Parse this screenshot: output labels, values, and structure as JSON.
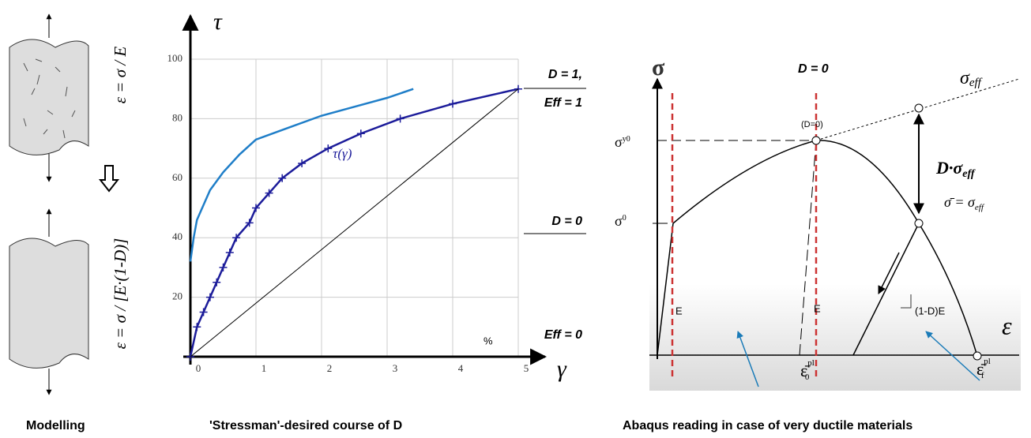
{
  "modelling": {
    "eq1": "ε = σ / E",
    "eq2": "ε = σ / [E·(1-D)]",
    "caption": "Modelling"
  },
  "chart_data": {
    "type": "line",
    "title": "'Stressman'-desired course of D",
    "y_label": "τ",
    "x_label": "γ",
    "unit_note": "%",
    "xlim": [
      0,
      5
    ],
    "ylim": [
      0,
      100
    ],
    "xticks": [
      0,
      1,
      2,
      3,
      4,
      5
    ],
    "yticks": [
      20,
      40,
      60,
      80,
      100
    ],
    "grid": true,
    "series": [
      {
        "color": "#1f7ec8",
        "marker": false,
        "x": [
          0,
          0.05,
          0.1,
          0.2,
          0.3,
          0.5,
          0.75,
          1,
          1.5,
          2,
          2.5,
          3,
          3.4
        ],
        "values": [
          32,
          40,
          46,
          51,
          56,
          62,
          68,
          73,
          77,
          81,
          84,
          87,
          90
        ]
      },
      {
        "name": "τ(γ)",
        "color": "#1c1c9a",
        "marker": true,
        "x": [
          0,
          0.1,
          0.2,
          0.3,
          0.4,
          0.5,
          0.6,
          0.7,
          0.9,
          1,
          1.2,
          1.4,
          1.7,
          2.1,
          2.6,
          3.2,
          4,
          5
        ],
        "values": [
          0,
          10,
          15,
          20,
          25,
          30,
          35,
          40,
          45,
          50,
          55,
          60,
          65,
          70,
          75,
          80,
          85,
          90
        ]
      },
      {
        "color": "#000000",
        "marker": false,
        "x": [
          0,
          5
        ],
        "values": [
          0,
          90
        ]
      }
    ],
    "annotations": [
      "D = 1,",
      "Eff = 1",
      "D = 0",
      "Eff = 0"
    ]
  },
  "abaqus": {
    "sigma": "σ",
    "d0": "D = 0",
    "seff": {
      "base": "σ",
      "sub": "eff"
    },
    "dpeak": "(D=0)",
    "sy0": {
      "base": "σ",
      "sub": "y0"
    },
    "s0": {
      "base": "σ",
      "sub": "0"
    },
    "dseff": {
      "base": "D·σ",
      "sub": "eff"
    },
    "sbar": {
      "base": "σ̄ = σ",
      "sub": "eff"
    },
    "e1": "E",
    "e2": "E",
    "e3": "(1-D)E",
    "eps": "ε",
    "ep0": {
      "base": "ε̄",
      "sup": "pl",
      "sub": "0"
    },
    "epf": {
      "base": "ε̄",
      "sup": "pl",
      "sub": "f"
    },
    "caption": "Abaqus reading in case of very ductile materials"
  }
}
